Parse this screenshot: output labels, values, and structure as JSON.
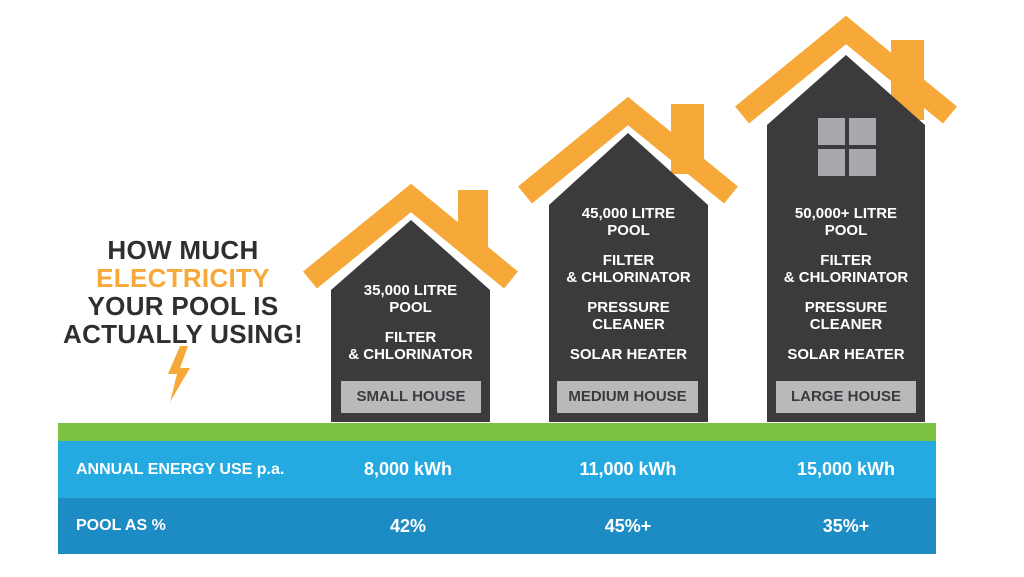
{
  "headline": {
    "line1": "HOW MUCH",
    "line2": "ELECTRICITY",
    "line3": "YOUR POOL IS",
    "line4": "ACTUALLY USING!"
  },
  "houses": [
    {
      "pool": "35,000 LITRE\nPOOL",
      "items": [
        "FILTER\n& CHLORINATOR"
      ],
      "tag": "SMALL HOUSE"
    },
    {
      "pool": "45,000 LITRE\nPOOL",
      "items": [
        "FILTER\n& CHLORINATOR",
        "PRESSURE\nCLEANER",
        "SOLAR HEATER"
      ],
      "tag": "MEDIUM HOUSE"
    },
    {
      "pool": "50,000+ LITRE\nPOOL",
      "items": [
        "FILTER\n& CHLORINATOR",
        "PRESSURE\nCLEANER",
        "SOLAR HEATER"
      ],
      "tag": "LARGE HOUSE"
    }
  ],
  "table": {
    "energy_label": "ANNUAL ENERGY USE p.a.",
    "energy_values": [
      "8,000 kWh",
      "11,000 kWh",
      "15,000 kWh"
    ],
    "pool_label": "POOL AS %",
    "pool_values": [
      "42%",
      "45%+",
      "35%+"
    ]
  },
  "colors": {
    "roof": "#f6a939",
    "house": "#3b3b3e",
    "ground": "#7dc143",
    "row1": "#24aae1",
    "row2": "#1d8bc4"
  }
}
